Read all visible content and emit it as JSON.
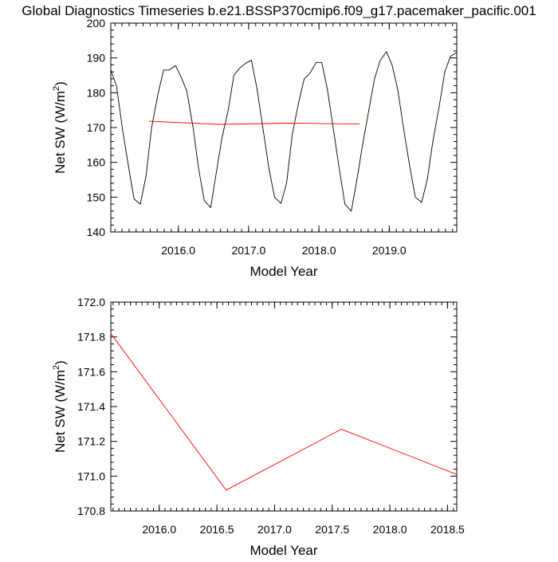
{
  "title": "Global Diagnostics Timeseries b.e21.BSSP370cmip6.f09_g17.pacemaker_pacific.001",
  "chart_data": [
    {
      "type": "line",
      "xlabel": "Model Year",
      "ylabel": "Net SW (W/m",
      "ylabel_sup": "2",
      "ylabel_tail": ")",
      "xlim": [
        2015.04,
        2019.96
      ],
      "ylim": [
        140,
        200
      ],
      "xticks": [
        2016.0,
        2017.0,
        2018.0,
        2019.0
      ],
      "xtick_labels": [
        "2016.0",
        "2017.0",
        "2018.0",
        "2019.0"
      ],
      "yticks": [
        140,
        150,
        160,
        170,
        180,
        190,
        200
      ],
      "ytick_labels": [
        "140",
        "150",
        "160",
        "170",
        "180",
        "190",
        "200"
      ],
      "series": [
        {
          "color": "#000000",
          "x": [
            2015.04,
            2015.12,
            2015.21,
            2015.29,
            2015.37,
            2015.46,
            2015.54,
            2015.62,
            2015.71,
            2015.79,
            2015.87,
            2015.96,
            2016.04,
            2016.12,
            2016.21,
            2016.29,
            2016.37,
            2016.46,
            2016.54,
            2016.62,
            2016.71,
            2016.79,
            2016.87,
            2016.96,
            2017.04,
            2017.12,
            2017.21,
            2017.29,
            2017.37,
            2017.46,
            2017.54,
            2017.62,
            2017.71,
            2017.79,
            2017.87,
            2017.96,
            2018.04,
            2018.12,
            2018.21,
            2018.29,
            2018.37,
            2018.46,
            2018.54,
            2018.62,
            2018.71,
            2018.79,
            2018.87,
            2018.96,
            2019.04,
            2019.12,
            2019.21,
            2019.29,
            2019.37,
            2019.46,
            2019.54,
            2019.62,
            2019.71,
            2019.79,
            2019.87,
            2019.96
          ],
          "y": [
            186.5,
            182.0,
            169.0,
            159.0,
            149.5,
            148.0,
            156.0,
            170.0,
            179.5,
            186.5,
            186.5,
            187.8,
            184.5,
            180.5,
            170.0,
            158.0,
            149.0,
            147.0,
            157.0,
            167.0,
            175.0,
            185.0,
            187.0,
            188.5,
            189.3,
            181.0,
            169.0,
            158.0,
            150.0,
            148.2,
            154.0,
            168.0,
            177.0,
            184.0,
            185.5,
            188.7,
            188.7,
            181.0,
            169.0,
            158.0,
            148.0,
            146.0,
            155.0,
            165.0,
            175.0,
            184.0,
            189.2,
            191.8,
            188.0,
            181.0,
            169.0,
            159.0,
            150.0,
            148.5,
            155.0,
            166.0,
            176.0,
            186.0,
            190.5,
            191.5
          ]
        },
        {
          "color": "#ff0000",
          "x": [
            2015.58,
            2016.58,
            2017.58,
            2018.58
          ],
          "y": [
            171.82,
            170.92,
            171.27,
            171.01
          ]
        }
      ]
    },
    {
      "type": "line",
      "xlabel": "Model Year",
      "ylabel": "Net SW (W/m",
      "ylabel_sup": "2",
      "ylabel_tail": ")",
      "xlim": [
        2015.58,
        2018.58
      ],
      "ylim": [
        170.8,
        172.0
      ],
      "xticks": [
        2016.0,
        2016.5,
        2017.0,
        2017.5,
        2018.0,
        2018.5
      ],
      "xtick_labels": [
        "2016.0",
        "2016.5",
        "2017.0",
        "2017.5",
        "2018.0",
        "2018.5"
      ],
      "yticks": [
        170.8,
        171.0,
        171.2,
        171.4,
        171.6,
        171.8,
        172.0
      ],
      "ytick_labels": [
        "170.8",
        "171.0",
        "171.2",
        "171.4",
        "171.6",
        "171.8",
        "172.0"
      ],
      "series": [
        {
          "color": "#ff0000",
          "x": [
            2015.58,
            2016.58,
            2017.58,
            2018.58
          ],
          "y": [
            171.82,
            170.92,
            171.27,
            171.01
          ]
        }
      ]
    }
  ]
}
